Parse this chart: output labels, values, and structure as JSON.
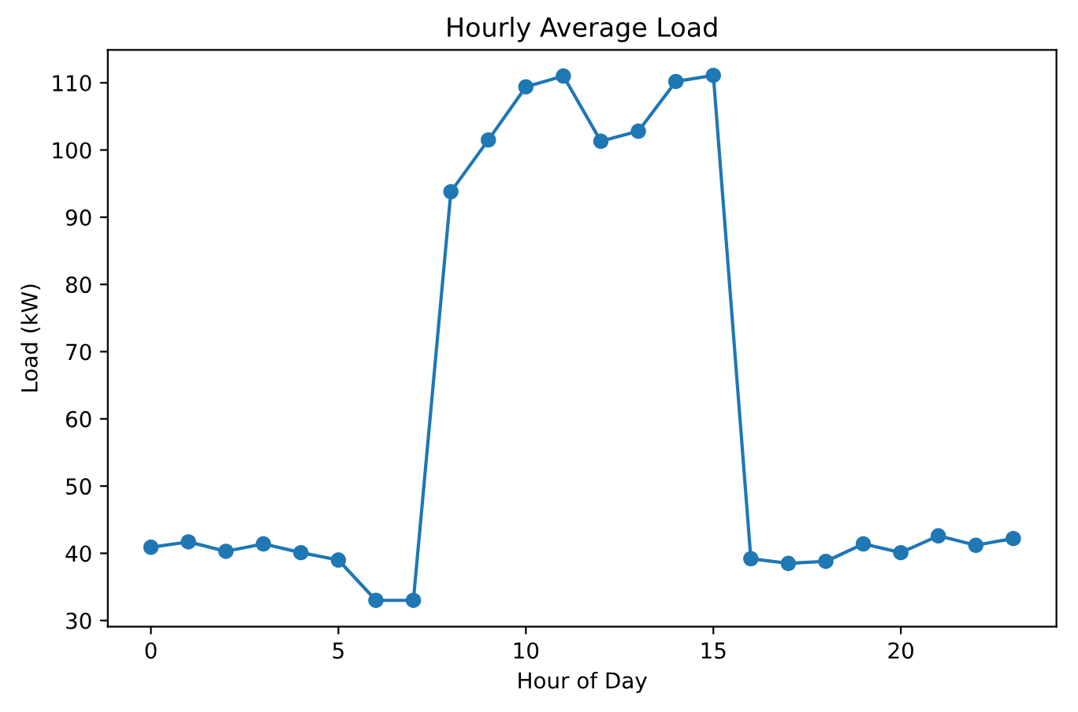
{
  "chart_data": {
    "type": "line",
    "title": "Hourly Average Load",
    "xlabel": "Hour of Day",
    "ylabel": "Load (kW)",
    "x": [
      0,
      1,
      2,
      3,
      4,
      5,
      6,
      7,
      8,
      9,
      10,
      11,
      12,
      13,
      14,
      15,
      16,
      17,
      18,
      19,
      20,
      21,
      22,
      23
    ],
    "series": [
      {
        "color": "#1f77b4",
        "values": [
          40.9,
          41.7,
          40.3,
          41.4,
          40.1,
          39.0,
          33.0,
          33.0,
          93.8,
          101.5,
          109.4,
          111.0,
          101.3,
          102.8,
          110.2,
          111.1,
          39.2,
          38.5,
          38.8,
          41.4,
          40.1,
          42.6,
          41.2,
          42.2
        ]
      }
    ],
    "marker": "circle",
    "line_style": "solid",
    "grid": false,
    "legend": false,
    "xlim": [
      -1.15,
      24.15
    ],
    "ylim": [
      29.1,
      114.9
    ],
    "xticks": [
      0,
      5,
      10,
      15,
      20
    ],
    "yticks": [
      30,
      40,
      50,
      60,
      70,
      80,
      90,
      100,
      110
    ]
  }
}
